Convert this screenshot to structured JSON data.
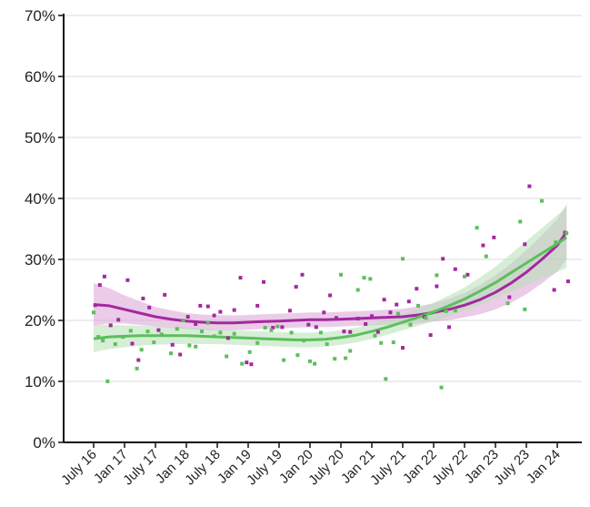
{
  "chart_data": {
    "type": "scatter",
    "title": "",
    "xlabel": "",
    "ylabel": "",
    "x_tick_labels": [
      "July 16",
      "Jan 17",
      "July 17",
      "Jan 18",
      "July 18",
      "Jan 19",
      "July 19",
      "Jan 20",
      "July 20",
      "Jan 21",
      "July 21",
      "Jan 22",
      "July 22",
      "Jan 23",
      "July 23",
      "Jan 24"
    ],
    "y_tick_labels": [
      "0%",
      "10%",
      "20%",
      "30%",
      "40%",
      "50%",
      "60%",
      "70%"
    ],
    "ylim": [
      0,
      70
    ],
    "grid": "horizontal",
    "legend": "none",
    "series": [
      {
        "color": "#a3299f",
        "band_color": "#d9a3d6",
        "points": [
          [
            0.05,
            22.5
          ],
          [
            0.2,
            25.8
          ],
          [
            0.35,
            27.2
          ],
          [
            0.55,
            19.2
          ],
          [
            0.8,
            20.1
          ],
          [
            1.1,
            26.6
          ],
          [
            1.25,
            16.2
          ],
          [
            1.45,
            13.5
          ],
          [
            1.6,
            23.6
          ],
          [
            1.8,
            22.1
          ],
          [
            2.1,
            18.4
          ],
          [
            2.3,
            24.2
          ],
          [
            2.55,
            16.0
          ],
          [
            2.8,
            14.4
          ],
          [
            3.05,
            20.6
          ],
          [
            3.3,
            19.4
          ],
          [
            3.45,
            22.4
          ],
          [
            3.7,
            22.3
          ],
          [
            3.9,
            20.8
          ],
          [
            4.1,
            21.4
          ],
          [
            4.35,
            17.1
          ],
          [
            4.55,
            21.7
          ],
          [
            4.75,
            27.0
          ],
          [
            4.95,
            13.1
          ],
          [
            5.1,
            12.8
          ],
          [
            5.3,
            22.4
          ],
          [
            5.5,
            26.3
          ],
          [
            5.8,
            18.8
          ],
          [
            6.1,
            18.9
          ],
          [
            6.35,
            21.6
          ],
          [
            6.55,
            25.5
          ],
          [
            6.75,
            27.5
          ],
          [
            6.95,
            19.3
          ],
          [
            7.2,
            18.9
          ],
          [
            7.45,
            21.3
          ],
          [
            7.65,
            24.1
          ],
          [
            7.85,
            20.4
          ],
          [
            8.1,
            18.2
          ],
          [
            8.3,
            18.1
          ],
          [
            8.55,
            20.3
          ],
          [
            8.8,
            19.4
          ],
          [
            9.0,
            20.7
          ],
          [
            9.2,
            18.1
          ],
          [
            9.4,
            23.4
          ],
          [
            9.6,
            21.3
          ],
          [
            9.8,
            22.6
          ],
          [
            10.0,
            15.5
          ],
          [
            10.2,
            23.1
          ],
          [
            10.45,
            25.2
          ],
          [
            10.7,
            20.6
          ],
          [
            10.9,
            17.6
          ],
          [
            11.1,
            25.6
          ],
          [
            11.3,
            30.1
          ],
          [
            11.5,
            18.9
          ],
          [
            11.7,
            28.4
          ],
          [
            12.1,
            27.5
          ],
          [
            12.6,
            32.3
          ],
          [
            12.95,
            33.6
          ],
          [
            13.45,
            23.8
          ],
          [
            13.95,
            32.5
          ],
          [
            14.1,
            42.0
          ],
          [
            14.9,
            25.0
          ],
          [
            15.35,
            26.4
          ],
          [
            15.25,
            34.4
          ]
        ],
        "trend": [
          [
            0.0,
            22.6
          ],
          [
            0.5,
            22.4
          ],
          [
            1.0,
            21.8
          ],
          [
            1.5,
            21.2
          ],
          [
            2.0,
            20.6
          ],
          [
            2.5,
            20.2
          ],
          [
            3.0,
            19.9
          ],
          [
            3.5,
            19.7
          ],
          [
            4.0,
            19.6
          ],
          [
            4.5,
            19.6
          ],
          [
            5.0,
            19.7
          ],
          [
            5.5,
            19.8
          ],
          [
            6.0,
            19.9
          ],
          [
            6.5,
            20.0
          ],
          [
            7.0,
            20.1
          ],
          [
            7.5,
            20.1
          ],
          [
            8.0,
            20.2
          ],
          [
            8.5,
            20.3
          ],
          [
            9.0,
            20.4
          ],
          [
            9.5,
            20.5
          ],
          [
            10.0,
            20.6
          ],
          [
            10.5,
            20.9
          ],
          [
            11.0,
            21.3
          ],
          [
            11.5,
            21.8
          ],
          [
            12.0,
            22.5
          ],
          [
            12.5,
            23.4
          ],
          [
            13.0,
            24.6
          ],
          [
            13.5,
            26.1
          ],
          [
            14.0,
            27.9
          ],
          [
            14.5,
            30.0
          ],
          [
            15.0,
            32.3
          ],
          [
            15.3,
            34.5
          ]
        ],
        "band_halfwidth": [
          [
            0.0,
            3.5
          ],
          [
            1.0,
            2.3
          ],
          [
            2.0,
            1.6
          ],
          [
            3.0,
            1.3
          ],
          [
            5.0,
            1.2
          ],
          [
            7.0,
            1.2
          ],
          [
            9.0,
            1.2
          ],
          [
            10.0,
            1.3
          ],
          [
            11.0,
            1.5
          ],
          [
            12.0,
            2.0
          ],
          [
            13.0,
            2.8
          ],
          [
            14.0,
            3.6
          ],
          [
            15.3,
            4.5
          ]
        ]
      },
      {
        "color": "#5cbf5c",
        "band_color": "#b5e0b5",
        "points": [
          [
            0.0,
            21.3
          ],
          [
            0.15,
            17.3
          ],
          [
            0.3,
            16.7
          ],
          [
            0.45,
            10.0
          ],
          [
            0.7,
            16.1
          ],
          [
            0.95,
            17.3
          ],
          [
            1.2,
            18.3
          ],
          [
            1.4,
            12.1
          ],
          [
            1.55,
            15.2
          ],
          [
            1.75,
            18.2
          ],
          [
            1.95,
            16.4
          ],
          [
            2.2,
            17.7
          ],
          [
            2.5,
            14.6
          ],
          [
            2.7,
            18.6
          ],
          [
            2.9,
            20.0
          ],
          [
            3.1,
            15.9
          ],
          [
            3.3,
            15.7
          ],
          [
            3.5,
            18.2
          ],
          [
            3.7,
            19.6
          ],
          [
            3.9,
            17.4
          ],
          [
            4.1,
            18.0
          ],
          [
            4.3,
            14.1
          ],
          [
            4.55,
            17.8
          ],
          [
            4.8,
            12.9
          ],
          [
            5.05,
            14.8
          ],
          [
            5.3,
            16.3
          ],
          [
            5.55,
            18.8
          ],
          [
            5.75,
            18.4
          ],
          [
            5.95,
            19.0
          ],
          [
            6.15,
            13.5
          ],
          [
            6.4,
            18.0
          ],
          [
            6.6,
            14.3
          ],
          [
            6.8,
            16.7
          ],
          [
            7.0,
            13.3
          ],
          [
            7.15,
            12.9
          ],
          [
            7.35,
            18.0
          ],
          [
            7.55,
            16.1
          ],
          [
            7.8,
            13.7
          ],
          [
            8.0,
            27.5
          ],
          [
            8.15,
            13.8
          ],
          [
            8.3,
            15.0
          ],
          [
            8.55,
            25.0
          ],
          [
            8.75,
            27.0
          ],
          [
            8.95,
            26.8
          ],
          [
            9.1,
            17.5
          ],
          [
            9.3,
            16.3
          ],
          [
            9.45,
            10.4
          ],
          [
            9.7,
            16.4
          ],
          [
            9.85,
            21.1
          ],
          [
            10.0,
            30.1
          ],
          [
            10.25,
            19.3
          ],
          [
            10.5,
            22.4
          ],
          [
            10.75,
            20.4
          ],
          [
            10.9,
            21.2
          ],
          [
            11.1,
            27.4
          ],
          [
            11.25,
            9.0
          ],
          [
            11.4,
            21.5
          ],
          [
            11.7,
            21.6
          ],
          [
            12.0,
            27.2
          ],
          [
            12.4,
            35.2
          ],
          [
            12.7,
            30.5
          ],
          [
            13.4,
            22.8
          ],
          [
            13.8,
            36.2
          ],
          [
            13.95,
            21.8
          ],
          [
            14.5,
            39.6
          ],
          [
            14.95,
            32.8
          ],
          [
            15.3,
            34.3
          ]
        ],
        "trend": [
          [
            0.0,
            17.0
          ],
          [
            0.5,
            17.3
          ],
          [
            1.0,
            17.4
          ],
          [
            1.5,
            17.5
          ],
          [
            2.0,
            17.5
          ],
          [
            2.5,
            17.5
          ],
          [
            3.0,
            17.5
          ],
          [
            3.5,
            17.4
          ],
          [
            4.0,
            17.3
          ],
          [
            4.5,
            17.2
          ],
          [
            5.0,
            17.1
          ],
          [
            5.5,
            17.0
          ],
          [
            6.0,
            16.9
          ],
          [
            6.5,
            16.8
          ],
          [
            7.0,
            16.8
          ],
          [
            7.5,
            16.9
          ],
          [
            8.0,
            17.2
          ],
          [
            8.5,
            17.6
          ],
          [
            9.0,
            18.2
          ],
          [
            9.5,
            18.9
          ],
          [
            10.0,
            19.7
          ],
          [
            10.5,
            20.5
          ],
          [
            11.0,
            21.4
          ],
          [
            11.5,
            22.4
          ],
          [
            12.0,
            23.5
          ],
          [
            12.5,
            24.8
          ],
          [
            13.0,
            26.2
          ],
          [
            13.5,
            27.8
          ],
          [
            14.0,
            29.4
          ],
          [
            14.5,
            31.0
          ],
          [
            15.0,
            32.6
          ],
          [
            15.3,
            33.6
          ]
        ],
        "band_halfwidth": [
          [
            0.0,
            2.2
          ],
          [
            1.0,
            1.8
          ],
          [
            2.0,
            1.5
          ],
          [
            4.0,
            1.2
          ],
          [
            6.0,
            1.2
          ],
          [
            8.0,
            1.2
          ],
          [
            10.0,
            1.3
          ],
          [
            11.0,
            1.5
          ],
          [
            12.0,
            1.9
          ],
          [
            13.0,
            2.6
          ],
          [
            14.0,
            3.6
          ],
          [
            15.3,
            5.0
          ]
        ]
      }
    ]
  }
}
